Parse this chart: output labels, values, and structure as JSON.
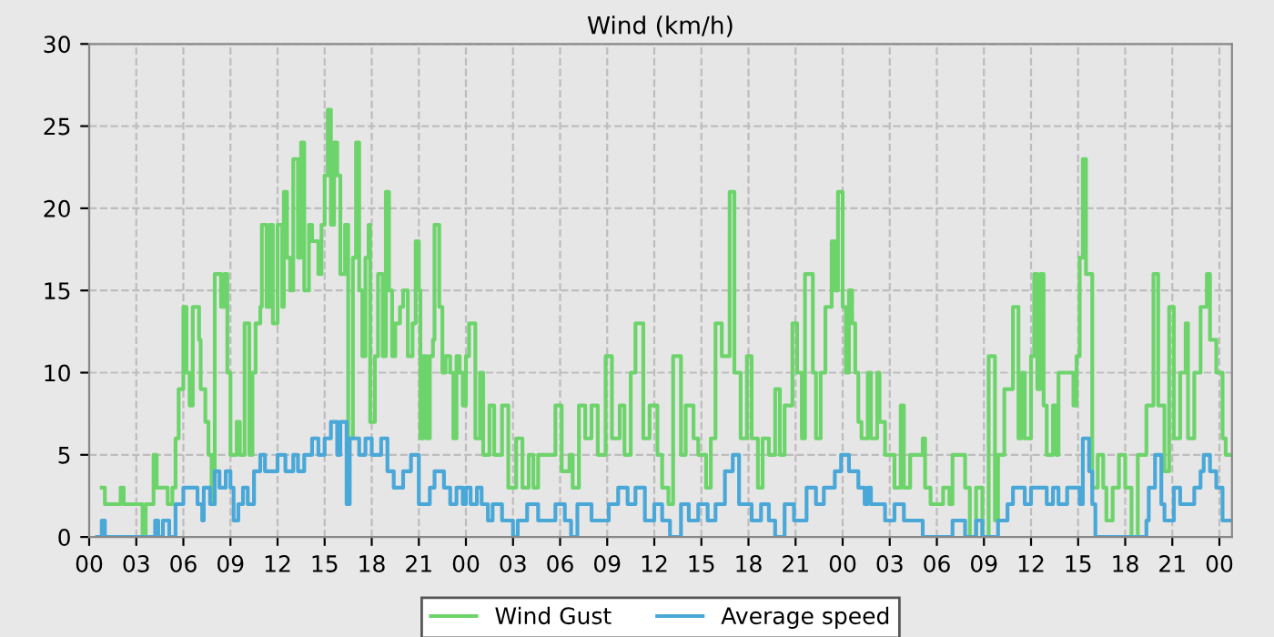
{
  "chart_data": {
    "type": "step",
    "title": "Wind (km/h)",
    "xlim": [
      0,
      72.8
    ],
    "ylim": [
      0,
      30
    ],
    "xticks": [
      {
        "value": 0,
        "label": "00"
      },
      {
        "value": 3,
        "label": "03"
      },
      {
        "value": 6,
        "label": "06"
      },
      {
        "value": 9,
        "label": "09"
      },
      {
        "value": 12,
        "label": "12"
      },
      {
        "value": 15,
        "label": "15"
      },
      {
        "value": 18,
        "label": "18"
      },
      {
        "value": 21,
        "label": "21"
      },
      {
        "value": 24,
        "label": "00"
      },
      {
        "value": 27,
        "label": "03"
      },
      {
        "value": 30,
        "label": "06"
      },
      {
        "value": 33,
        "label": "09"
      },
      {
        "value": 36,
        "label": "12"
      },
      {
        "value": 39,
        "label": "15"
      },
      {
        "value": 42,
        "label": "18"
      },
      {
        "value": 45,
        "label": "21"
      },
      {
        "value": 48,
        "label": "00"
      },
      {
        "value": 51,
        "label": "03"
      },
      {
        "value": 54,
        "label": "06"
      },
      {
        "value": 57,
        "label": "09"
      },
      {
        "value": 60,
        "label": "12"
      },
      {
        "value": 63,
        "label": "15"
      },
      {
        "value": 66,
        "label": "18"
      },
      {
        "value": 69,
        "label": "21"
      },
      {
        "value": 72,
        "label": "00"
      }
    ],
    "yticks": [
      0,
      5,
      10,
      15,
      20,
      25,
      30
    ],
    "grid": true,
    "legend": "bottom",
    "series": [
      {
        "name": "Wind Gust",
        "color": "#6dd46b",
        "x": [
          0.8,
          1.0,
          2.0,
          2.2,
          3.4,
          3.6,
          4.1,
          4.3,
          5.0,
          5.3,
          5.5,
          5.7,
          6.0,
          6.2,
          6.4,
          6.6,
          7.0,
          7.1,
          7.4,
          7.6,
          7.8,
          8.0,
          8.4,
          8.6,
          8.8,
          9.0,
          9.4,
          9.6,
          9.9,
          10.2,
          10.4,
          10.6,
          10.9,
          11.0,
          11.3,
          11.5,
          11.7,
          12.0,
          12.3,
          12.4,
          12.6,
          12.8,
          13.0,
          13.3,
          13.5,
          13.7,
          14.0,
          14.2,
          14.6,
          14.8,
          15.0,
          15.2,
          15.4,
          15.6,
          15.8,
          16.0,
          16.3,
          16.5,
          16.8,
          17.0,
          17.2,
          17.4,
          17.6,
          17.8,
          17.9,
          18.2,
          18.4,
          18.7,
          18.9,
          19.1,
          19.3,
          19.5,
          19.8,
          20.0,
          20.3,
          20.6,
          20.8,
          21.0,
          21.1,
          21.3,
          21.5,
          21.7,
          21.9,
          22.0,
          22.3,
          22.5,
          22.7,
          23.0,
          23.2,
          23.4,
          23.6,
          23.8,
          24.0,
          24.2,
          24.6,
          24.9,
          25.1,
          25.5,
          25.8,
          26.3,
          26.7,
          27.2,
          27.6,
          28.0,
          28.3,
          28.6,
          29.7,
          30.1,
          30.6,
          30.8,
          31.2,
          31.6,
          32.0,
          32.4,
          32.9,
          33.3,
          33.8,
          34.1,
          34.5,
          34.8,
          35.3,
          35.7,
          36.2,
          36.5,
          36.9,
          37.2,
          37.7,
          38.0,
          38.5,
          38.8,
          39.3,
          39.6,
          39.9,
          40.3,
          40.8,
          41.1,
          41.5,
          41.9,
          42.2,
          42.6,
          42.9,
          43.3,
          43.7,
          44.0,
          44.3,
          44.8,
          45.1,
          45.4,
          45.6,
          46.1,
          46.3,
          46.6,
          46.9,
          47.3,
          47.5,
          47.7,
          48.0,
          48.2,
          48.4,
          48.6,
          48.8,
          49.0,
          49.2,
          49.6,
          49.8,
          50.2,
          50.35,
          50.7,
          51.3,
          51.7,
          51.9,
          52.3,
          53.1,
          53.25,
          53.6,
          54.4,
          54.8,
          55.0,
          55.8,
          56.1,
          56.5,
          56.9,
          57.3,
          57.7,
          57.9,
          58.3,
          58.85,
          59.2,
          59.4,
          59.6,
          60.0,
          60.2,
          60.4,
          60.6,
          60.8,
          61.0,
          61.4,
          61.6,
          61.75,
          62.3,
          62.7,
          62.9,
          63.1,
          63.3,
          63.5,
          63.9,
          64.25,
          64.6,
          64.8,
          65.2,
          65.6,
          66.0,
          66.4,
          66.8,
          67.35,
          67.8,
          68.1,
          68.5,
          68.8,
          69.1,
          69.5,
          69.85,
          70.0,
          70.4,
          70.8,
          71.2,
          71.4,
          71.8,
          72.2,
          72.4,
          72.75
        ],
        "values": [
          3,
          2,
          3,
          2,
          0,
          2,
          5,
          3,
          2,
          3,
          6,
          9,
          14,
          10,
          8,
          14,
          12,
          9,
          7,
          5,
          2,
          16,
          14,
          16,
          10,
          5,
          7,
          5,
          13,
          5,
          10,
          13,
          14,
          19,
          14,
          19,
          13,
          19,
          14,
          21,
          17,
          15,
          23,
          17,
          24,
          15,
          19,
          18,
          16,
          19,
          22,
          26,
          19,
          24,
          22,
          16,
          19,
          6,
          17,
          24,
          15,
          11,
          17,
          19,
          7,
          11,
          16,
          11,
          21,
          15,
          11,
          13,
          14,
          15,
          11,
          13,
          18,
          15,
          6,
          11,
          6,
          11,
          12,
          19,
          14,
          10,
          11,
          10,
          6,
          11,
          10,
          8,
          11,
          13,
          6,
          10,
          5,
          8,
          5,
          8,
          3,
          6,
          3,
          5,
          3,
          5,
          8,
          4,
          5,
          3,
          8,
          6,
          8,
          5,
          11,
          6,
          8,
          5,
          10,
          13,
          6,
          8,
          5,
          3,
          2,
          11,
          5,
          8,
          6,
          5,
          3,
          6,
          13,
          11,
          21,
          10,
          6,
          11,
          6,
          3,
          6,
          5,
          9,
          5,
          8,
          13,
          10,
          6,
          16,
          10,
          6,
          10,
          14,
          18,
          15,
          21,
          14,
          10,
          15,
          13,
          10,
          7,
          6,
          10,
          6,
          10,
          7,
          5,
          3,
          8,
          3,
          5,
          6,
          3,
          2,
          3,
          2,
          5,
          3,
          0,
          3,
          0,
          11,
          1,
          5,
          9,
          14,
          6,
          10,
          6,
          11,
          16,
          9,
          16,
          8,
          5,
          8,
          5,
          10,
          10,
          8,
          11,
          17,
          23,
          16,
          3,
          5,
          3,
          1,
          3,
          5,
          3,
          0,
          5,
          8,
          16,
          8,
          4,
          14,
          6,
          10,
          13,
          6,
          10,
          14,
          16,
          12,
          10,
          6,
          5,
          5
        ]
      },
      {
        "name": "Average speed",
        "color": "#4aa8d8",
        "x": [
          0.5,
          0.8,
          1.0,
          4.2,
          4.4,
          4.7,
          5.1,
          5.5,
          6.0,
          6.9,
          7.2,
          7.3,
          7.7,
          8.0,
          8.3,
          8.7,
          9.0,
          9.2,
          9.5,
          9.8,
          10.1,
          10.5,
          10.9,
          11.2,
          12.0,
          12.5,
          13.0,
          13.3,
          13.7,
          14.2,
          14.6,
          15.0,
          15.4,
          15.8,
          16.0,
          16.4,
          16.6,
          17.2,
          17.6,
          18.0,
          18.6,
          19.0,
          19.4,
          20.0,
          20.5,
          21.0,
          21.7,
          22.0,
          22.6,
          23.0,
          23.4,
          23.8,
          24.0,
          24.3,
          24.7,
          25.0,
          25.4,
          25.7,
          26.3,
          27.0,
          27.3,
          27.9,
          28.6,
          29.7,
          30.3,
          30.7,
          31.1,
          32.0,
          33.1,
          33.7,
          34.3,
          34.8,
          35.4,
          36.0,
          36.5,
          37.0,
          37.7,
          38.2,
          38.8,
          39.4,
          39.9,
          40.5,
          41.0,
          41.4,
          42.2,
          42.8,
          43.3,
          43.7,
          44.3,
          44.9,
          45.7,
          46.3,
          46.8,
          47.5,
          47.9,
          48.4,
          49.0,
          49.4,
          49.6,
          49.8,
          50.7,
          51.3,
          51.9,
          53.1,
          55.0,
          55.8,
          56.5,
          56.9,
          57.9,
          58.5,
          58.85,
          59.6,
          60.0,
          61.0,
          61.4,
          61.75,
          62.3,
          63.1,
          63.3,
          63.7,
          63.9,
          64.1,
          67.35,
          67.5,
          67.9,
          68.3,
          68.5,
          69.1,
          69.5,
          70.4,
          70.8,
          71.0,
          71.4,
          71.8,
          72.2,
          72.75
        ],
        "values": [
          0,
          1,
          0,
          1,
          0,
          1,
          0,
          2,
          3,
          2,
          1,
          3,
          2,
          4,
          3,
          4,
          3,
          1,
          2,
          3,
          2,
          4,
          5,
          4,
          5,
          4,
          5,
          4,
          5,
          6,
          5,
          6,
          7,
          5,
          7,
          2,
          6,
          5,
          6,
          5,
          6,
          4,
          3,
          4,
          5,
          2,
          3,
          4,
          3,
          2,
          3,
          2,
          3,
          2,
          3,
          2,
          1,
          2,
          1,
          0,
          1,
          2,
          1,
          2,
          1,
          0,
          2,
          1,
          2,
          3,
          2,
          3,
          1,
          2,
          1,
          0,
          2,
          1,
          2,
          1,
          2,
          4,
          5,
          2,
          1,
          2,
          1,
          0,
          2,
          1,
          3,
          2,
          3,
          4,
          5,
          4,
          3,
          2,
          3,
          2,
          1,
          2,
          1,
          0,
          1,
          0,
          1,
          0,
          1,
          2,
          3,
          2,
          3,
          2,
          3,
          2,
          3,
          2,
          6,
          4,
          2,
          0,
          1,
          3,
          5,
          2,
          1,
          3,
          2,
          3,
          4,
          5,
          4,
          3,
          1,
          1
        ]
      }
    ]
  }
}
